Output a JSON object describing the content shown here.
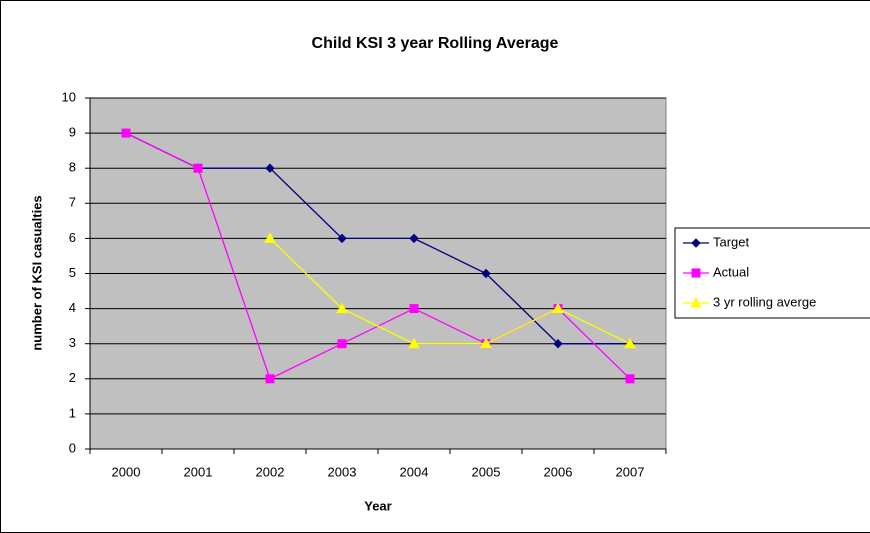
{
  "chart_data": {
    "type": "line",
    "title": "Child KSI 3 year Rolling Average",
    "x_label": "Year",
    "y_label": "number of KSI casualties",
    "categories": [
      "2000",
      "2001",
      "2002",
      "2003",
      "2004",
      "2005",
      "2006",
      "2007"
    ],
    "series": [
      {
        "name": "Target",
        "color": "#000080",
        "marker": "diamond",
        "values": [
          9,
          8,
          8,
          6,
          6,
          5,
          3,
          3
        ]
      },
      {
        "name": "Actual",
        "color": "#ff00ff",
        "marker": "square",
        "values": [
          9,
          8,
          2,
          3,
          4,
          3,
          4,
          2
        ]
      },
      {
        "name": "3 yr rolling averge",
        "color": "#ffff00",
        "marker": "triangle",
        "values": [
          null,
          null,
          6,
          4,
          3,
          3,
          4,
          3
        ]
      }
    ],
    "ylim": [
      0,
      10
    ],
    "yticks": [
      0,
      1,
      2,
      3,
      4,
      5,
      6,
      7,
      8,
      9,
      10
    ],
    "grid": true,
    "plot_background": "#c0c0c0",
    "legend": "right"
  }
}
